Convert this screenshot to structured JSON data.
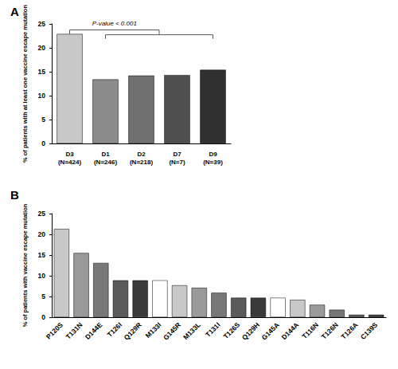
{
  "chart_data": [
    {
      "type": "bar",
      "title": "A",
      "categories": [
        "D3\n(N=424)",
        "D1\n(N=246)",
        "D2\n(N=218)",
        "D7\n(N=7)",
        "D9\n(N=39)"
      ],
      "values": [
        22.9,
        13.4,
        14.2,
        14.3,
        15.4
      ],
      "colors": [
        "#c8c8c8",
        "#8c8c8c",
        "#707070",
        "#505050",
        "#303030"
      ],
      "y_label": "% of patients with at least one vaccine escape mutation",
      "annotation": "P-value < 0.001",
      "ylim": [
        0,
        25
      ],
      "yticks": [
        0,
        5,
        10,
        15,
        20,
        25
      ],
      "grid": false
    },
    {
      "type": "bar",
      "title": "B",
      "categories": [
        "P120S",
        "T131N",
        "D144E",
        "T126I",
        "Q129R",
        "M133I",
        "G145R",
        "M133L",
        "T131I",
        "T126S",
        "Q129H",
        "G145A",
        "D144A",
        "T116N",
        "T126N",
        "T126A",
        "C139S"
      ],
      "values": [
        21.3,
        15.5,
        13.1,
        8.9,
        8.9,
        8.9,
        7.7,
        7.1,
        5.9,
        4.7,
        4.7,
        4.7,
        4.2,
        3.0,
        1.8,
        0.6,
        0.6
      ],
      "colors": [
        "#c8c8c8",
        "#9a9a9a",
        "#787878",
        "#5a5a5a",
        "#3a3a3a",
        "#ffffff",
        "#c8c8c8",
        "#9a9a9a",
        "#787878",
        "#5a5a5a",
        "#3a3a3a",
        "#ffffff",
        "#c8c8c8",
        "#9a9a9a",
        "#787878",
        "#5a5a5a",
        "#3a3a3a"
      ],
      "y_label": "% of patients with vaccine escape mutation",
      "ylim": [
        0,
        25
      ],
      "yticks": [
        0,
        5,
        10,
        15,
        20,
        25
      ],
      "grid": false
    }
  ]
}
